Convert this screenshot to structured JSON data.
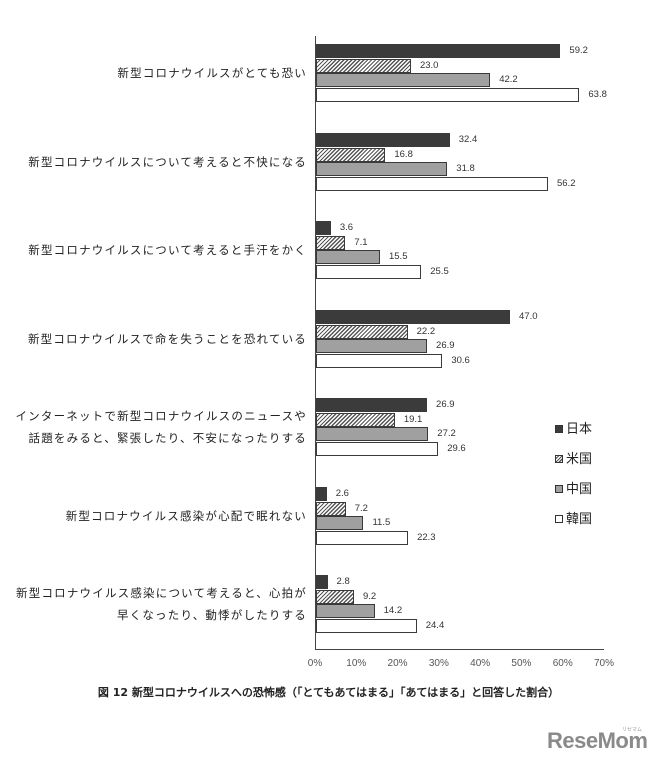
{
  "chart_data": {
    "type": "bar",
    "orientation": "horizontal",
    "title": "図 12  新型コロナウイルスへの恐怖感（「とてもあてはまる」「あてはまる」と回答した割合）",
    "xlabel": "",
    "ylabel": "",
    "xlim": [
      0,
      70
    ],
    "x_ticks": [
      "0%",
      "10%",
      "20%",
      "30%",
      "40%",
      "50%",
      "60%",
      "70%"
    ],
    "grid": false,
    "legend_position": "right",
    "categories": [
      [
        "新型コロナウイルスがとても恐い"
      ],
      [
        "新型コロナウイルスについて考えると不快になる"
      ],
      [
        "新型コロナウイルスについて考えると手汗をかく"
      ],
      [
        "新型コロナウイルスで命を失うことを恐れている"
      ],
      [
        "インターネットで新型コロナウイルスのニュースや",
        "話題をみると、緊張したり、不安になったりする"
      ],
      [
        "新型コロナウイルス感染が心配で眠れない"
      ],
      [
        "新型コロナウイルス感染について考えると、心拍が",
        "早くなったり、動悸がしたりする"
      ]
    ],
    "series": [
      {
        "name": "日本",
        "key": "jp",
        "color": "#3b3b3b",
        "values": [
          59.2,
          32.4,
          3.6,
          47.0,
          26.9,
          2.6,
          2.8
        ],
        "labels": [
          "59.2",
          "32.4",
          "3.6",
          "47.0",
          "26.9",
          "2.6",
          "2.8"
        ]
      },
      {
        "name": "米国",
        "key": "us",
        "color": "hatched",
        "values": [
          23.0,
          16.8,
          7.1,
          22.2,
          19.1,
          7.2,
          9.2
        ],
        "labels": [
          "23.0",
          "16.8",
          "7.1",
          "22.2",
          "19.1",
          "7.2",
          "9.2"
        ]
      },
      {
        "name": "中国",
        "key": "cn",
        "color": "#a0a0a0",
        "values": [
          42.2,
          31.8,
          15.5,
          26.9,
          27.2,
          11.5,
          14.2
        ],
        "labels": [
          "42.2",
          "31.8",
          "15.5",
          "26.9",
          "27.2",
          "11.5",
          "14.2"
        ]
      },
      {
        "name": "韓国",
        "key": "kr",
        "color": "#ffffff",
        "values": [
          63.8,
          56.2,
          25.5,
          30.6,
          29.6,
          22.3,
          24.4
        ],
        "labels": [
          "63.8",
          "56.2",
          "25.5",
          "30.6",
          "29.6",
          "22.3",
          "24.4"
        ]
      }
    ]
  },
  "caption": "図 12  新型コロナウイルスへの恐怖感（「とてもあてはまる」「あてはまる」と回答した割合）",
  "watermark": {
    "logo": "ReseMom",
    "sub": "リセマム"
  }
}
